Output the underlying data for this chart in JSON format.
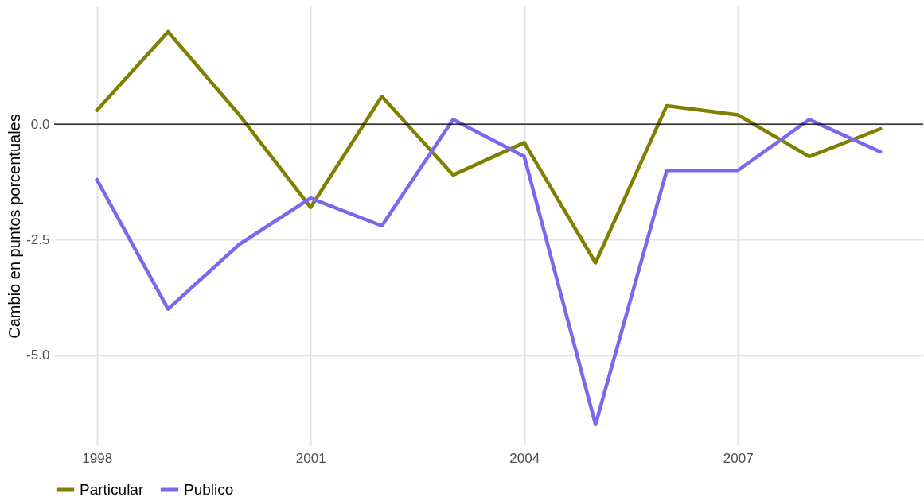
{
  "chart_data": {
    "type": "line",
    "ylabel": "Cambio en puntos porcentuales",
    "x": [
      1998,
      1999,
      2000,
      2001,
      2002,
      2003,
      2004,
      2005,
      2006,
      2007,
      2008,
      2009
    ],
    "series": [
      {
        "name": "Particular",
        "color": "#7f7f00",
        "values": [
          0.3,
          2.0,
          0.2,
          -1.8,
          0.6,
          -1.1,
          -0.4,
          -3.0,
          0.4,
          0.2,
          -0.7,
          -0.1
        ]
      },
      {
        "name": "Publico",
        "color": "#7b68ee",
        "values": [
          -1.2,
          -4.0,
          -2.6,
          -1.6,
          -2.2,
          0.1,
          -0.7,
          -6.5,
          -1.0,
          -1.0,
          0.1,
          -0.6
        ]
      }
    ],
    "xlim": [
      1997.4,
      2009.6
    ],
    "xticks": [
      1998,
      2001,
      2004,
      2007
    ],
    "ylim": [
      -6.95,
      2.55
    ],
    "yticks": [
      {
        "value": 0,
        "label": "0.0"
      },
      {
        "value": -2.5,
        "label": "-2.5"
      },
      {
        "value": -5,
        "label": "-5.0"
      }
    ],
    "ref_lines": [
      {
        "axis": "y",
        "value": 0,
        "color": "#000000"
      }
    ],
    "grid": true,
    "legend": "bottom",
    "marker": "none",
    "line_style": "solid"
  }
}
